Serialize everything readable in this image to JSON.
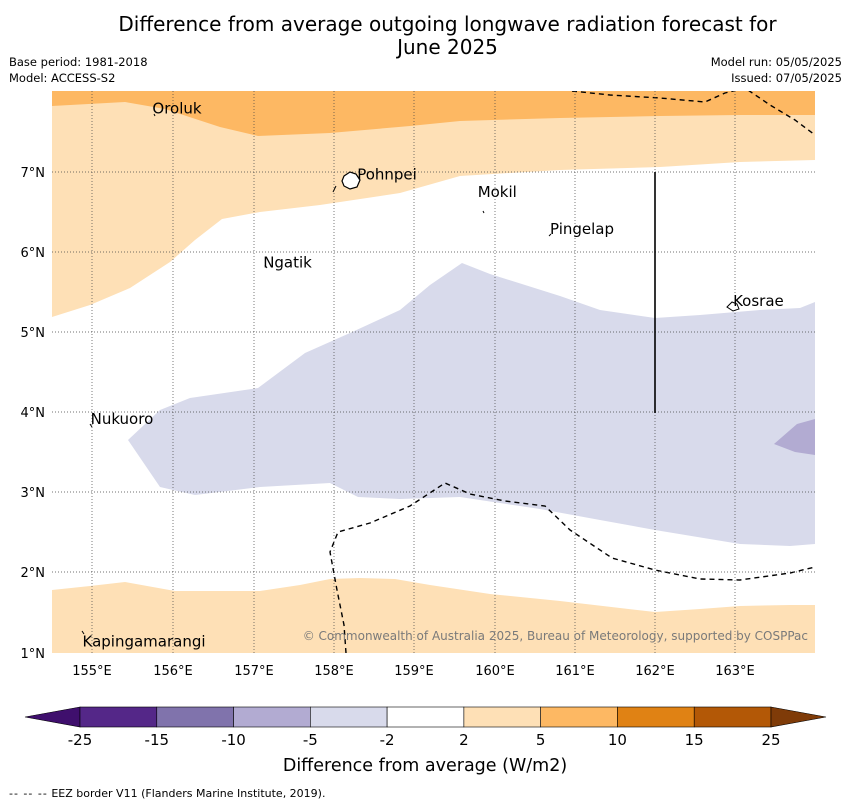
{
  "title": "Difference from average outgoing longwave radiation forecast for June 2025",
  "title_line1": "Difference from average outgoing longwave radiation forecast for",
  "title_line2": "June 2025",
  "base_period": "Base period: 1981-2018",
  "model": "Model: ACCESS-S2",
  "model_run": "Model run: 05/05/2025",
  "issued": "Issued: 07/05/2025",
  "map": {
    "lon_range": [
      154.5,
      164.0
    ],
    "lat_range": [
      1.0,
      8.0
    ],
    "lon_ticks": [
      "155°E",
      "156°E",
      "157°E",
      "158°E",
      "159°E",
      "160°E",
      "161°E",
      "162°E",
      "163°E"
    ],
    "lat_ticks": [
      "1°N",
      "2°N",
      "3°N",
      "4°N",
      "5°N",
      "6°N",
      "7°N"
    ],
    "grid": true,
    "places": [
      {
        "name": "Oroluk",
        "lon": 155.75,
        "lat": 7.72
      },
      {
        "name": "Pohnpei",
        "lon": 158.3,
        "lat": 6.9
      },
      {
        "name": "Mokil",
        "lon": 159.8,
        "lat": 6.68
      },
      {
        "name": "Pingelap",
        "lon": 160.7,
        "lat": 6.22
      },
      {
        "name": "Ngatik",
        "lon": 157.13,
        "lat": 5.8
      },
      {
        "name": "Kosrae",
        "lon": 162.98,
        "lat": 5.32
      },
      {
        "name": "Nukuoro",
        "lon": 154.98,
        "lat": 3.85
      },
      {
        "name": "Kapingamarangi",
        "lon": 154.88,
        "lat": 1.08
      }
    ],
    "copyright": "© Commonwealth of Australia 2025, Bureau of Meteorology, supported by COSPPac"
  },
  "colorbar": {
    "ticks": [
      "-25",
      "-15",
      "-10",
      "-5",
      "-2",
      "2",
      "5",
      "10",
      "15",
      "25"
    ],
    "colors": [
      "#3f0f6d",
      "#542788",
      "#8073ac",
      "#b2abd2",
      "#d8daeb",
      "#ffffff",
      "#fee0b6",
      "#fdb863",
      "#e08214",
      "#b35806",
      "#7f3b08"
    ],
    "label": "Difference from average (W/m2)"
  },
  "footer": "EEZ border V11 (Flanders Marine Institute, 2019)."
}
